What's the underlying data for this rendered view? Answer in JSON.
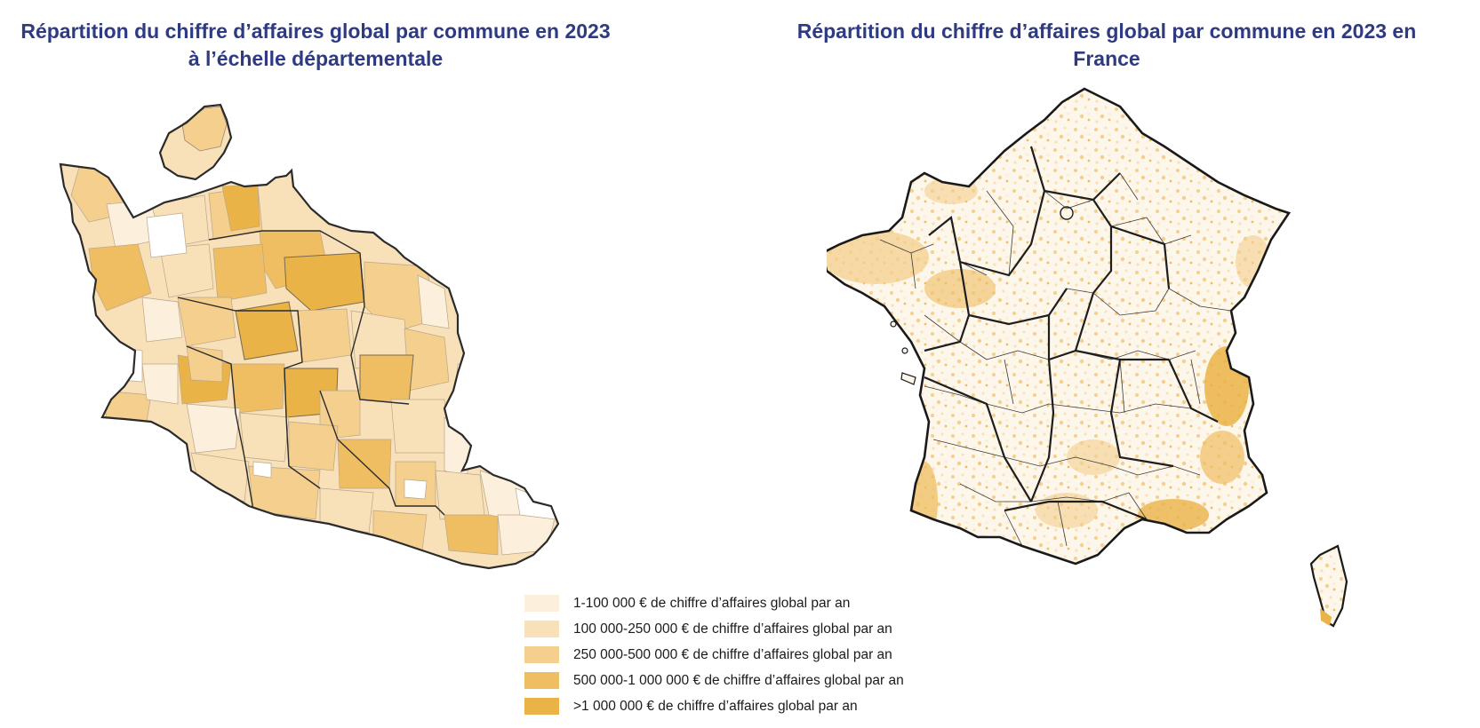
{
  "titles": {
    "left": "Répartition du chiffre d’affaires global par commune en 2023 à l’échelle départementale",
    "right": "Répartition du chiffre d’affaires global par commune en 2023 en France"
  },
  "colors": {
    "class1": "#fcefdc",
    "class2": "#f8e0b8",
    "class3": "#f4cf8e",
    "class4": "#efbe62",
    "class5": "#eab348",
    "boundary": "#2b2b2b",
    "title": "#2e3a82"
  },
  "legend": [
    {
      "label": "1-100 000 € de chiffre d’affaires global par an",
      "color": "#fcefdc"
    },
    {
      "label": "100 000-250 000 € de chiffre d’affaires global par an",
      "color": "#f8e0b8"
    },
    {
      "label": "250 000-500 000 € de chiffre d’affaires global par an",
      "color": "#f4cf8e"
    },
    {
      "label": "500 000-1 000 000 € de chiffre d’affaires global par an",
      "color": "#efbe62"
    },
    {
      "label": ">1 000 000 € de chiffre d’affaires global par an",
      "color": "#eab348"
    }
  ]
}
